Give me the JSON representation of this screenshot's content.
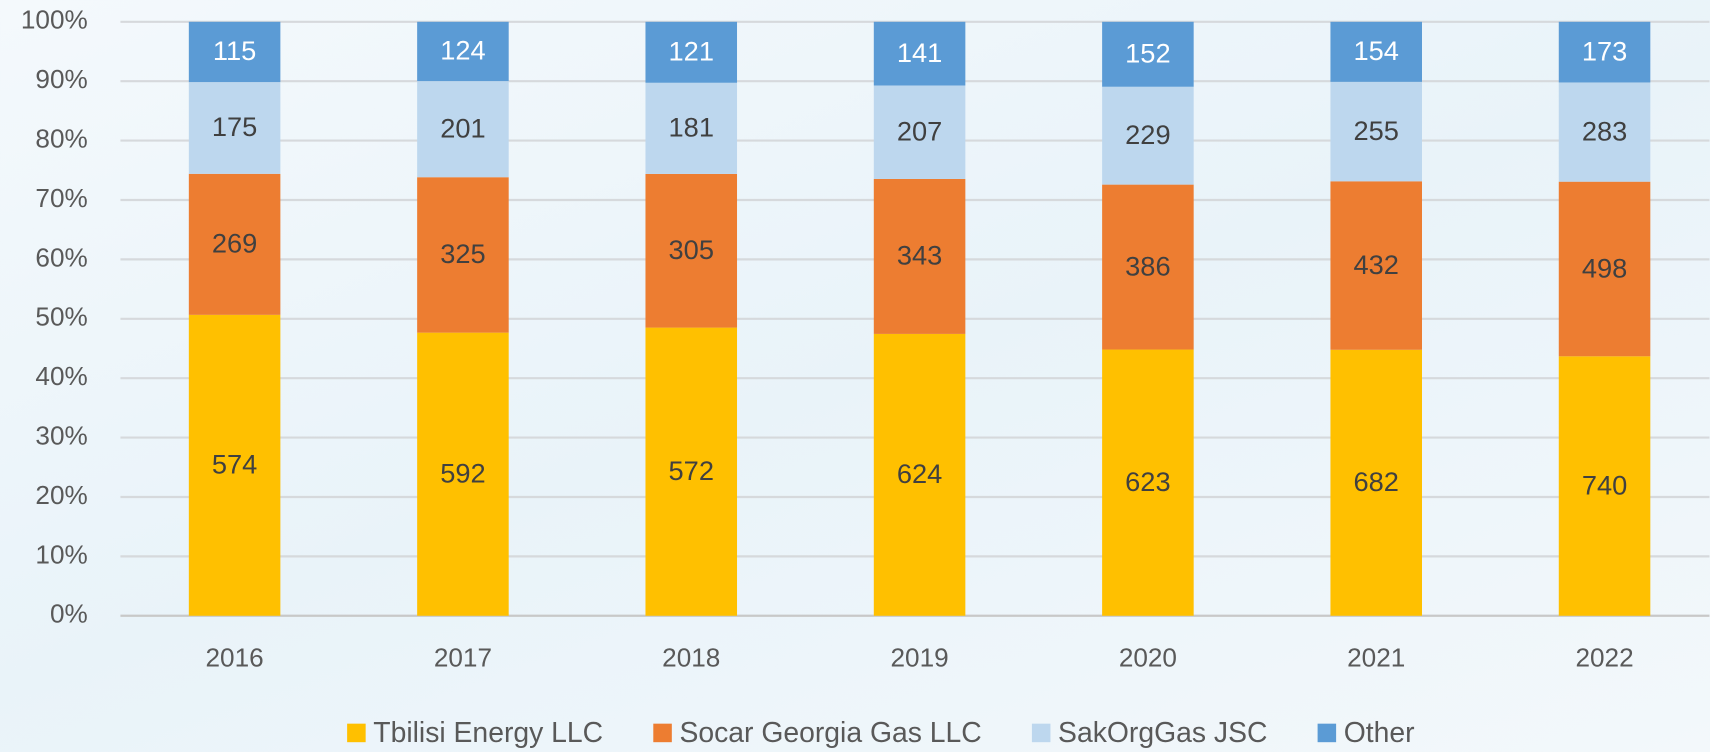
{
  "chart_data": {
    "type": "bar",
    "stacked": "percent",
    "categories": [
      "2016",
      "2017",
      "2018",
      "2019",
      "2020",
      "2021",
      "2022"
    ],
    "series": [
      {
        "name": "Tbilisi Energy LLC",
        "color": "#ffc000",
        "values": [
          574,
          592,
          572,
          624,
          623,
          682,
          740
        ]
      },
      {
        "name": "Socar Georgia Gas LLC",
        "color": "#ed7d31",
        "values": [
          269,
          325,
          305,
          343,
          386,
          432,
          498
        ]
      },
      {
        "name": "SakOrgGas JSC",
        "color": "#bdd7ee",
        "values": [
          175,
          201,
          181,
          207,
          229,
          255,
          283
        ]
      },
      {
        "name": "Other",
        "color": "#5b9bd5",
        "values": [
          115,
          124,
          121,
          141,
          152,
          154,
          173
        ]
      }
    ],
    "ylim": [
      0,
      100
    ],
    "yticks": [
      {
        "value": 0,
        "label": "0%"
      },
      {
        "value": 10,
        "label": "10%"
      },
      {
        "value": 20,
        "label": "20%"
      },
      {
        "value": 30,
        "label": "30%"
      },
      {
        "value": 40,
        "label": "40%"
      },
      {
        "value": 50,
        "label": "50%"
      },
      {
        "value": 60,
        "label": "60%"
      },
      {
        "value": 70,
        "label": "70%"
      },
      {
        "value": 80,
        "label": "80%"
      },
      {
        "value": 90,
        "label": "90%"
      },
      {
        "value": 100,
        "label": "100%"
      }
    ],
    "grid": true,
    "legend": "bottom"
  }
}
